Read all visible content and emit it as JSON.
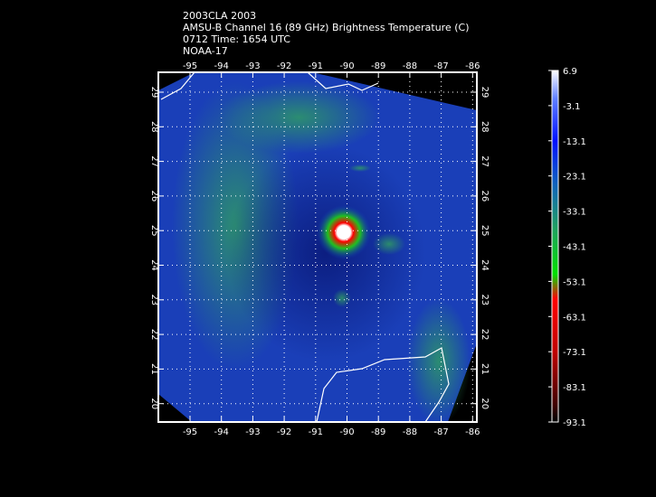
{
  "header": {
    "lines": [
      "2003CLA 2003",
      "AMSU-B Channel 16 (89 GHz) Brightness Temperature (C)",
      "0712 Time: 1654 UTC",
      "NOAA-17"
    ]
  },
  "map": {
    "lon_labels": [
      "-95",
      "-94",
      "-93",
      "-92",
      "-91",
      "-90",
      "-89",
      "-88",
      "-87",
      "-86"
    ],
    "lat_labels": [
      "29",
      "28",
      "27",
      "26",
      "25",
      "24",
      "23",
      "22",
      "21",
      "20"
    ]
  },
  "colorbar": {
    "labels": [
      "6.9",
      "-3.1",
      "-13.1",
      "-23.1",
      "-33.1",
      "-43.1",
      "-53.1",
      "-63.1",
      "-73.1",
      "-83.1",
      "-93.1"
    ]
  }
}
